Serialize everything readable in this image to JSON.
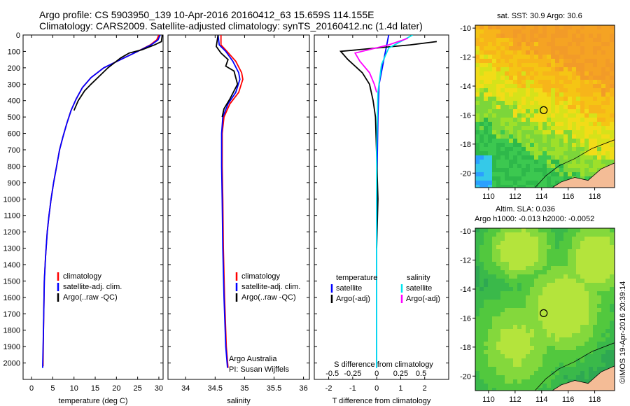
{
  "header": {
    "line1": "Argo profile: CS 5903950_139 10-Apr-2016 20160412_63 15.659S 114.155E",
    "line2": "Climatology: CARS2009. Satellite-adjusted climatology: synTS_20160412.nc (1.4d later)"
  },
  "chart_data": [
    {
      "type": "line",
      "panel": "temperature",
      "xlabel": "temperature (deg C)",
      "xlim": [
        -2,
        31
      ],
      "xticks": [
        0,
        5,
        10,
        15,
        20,
        25,
        30
      ],
      "ylim": [
        2100,
        0
      ],
      "yticks": [
        0,
        100,
        200,
        300,
        400,
        500,
        600,
        700,
        800,
        900,
        1000,
        1100,
        1200,
        1300,
        1400,
        1500,
        1600,
        1700,
        1800,
        1900,
        2000
      ],
      "legend": [
        "climatology",
        "satellite-adj. clim.",
        "Argo(..raw -QC)"
      ],
      "series": [
        {
          "name": "climatology",
          "color": "#ff0000",
          "x": [
            30,
            29.5,
            28,
            25,
            21,
            17,
            14,
            12,
            10.5,
            9.3,
            8.3,
            7.4,
            6.6,
            5.9,
            5.2,
            4.6,
            4.1,
            3.7,
            3.3,
            3.0,
            2.8,
            2.7
          ],
          "y": [
            0,
            30,
            60,
            100,
            150,
            200,
            260,
            320,
            390,
            460,
            540,
            620,
            700,
            800,
            900,
            1000,
            1100,
            1200,
            1350,
            1500,
            1800,
            2020
          ]
        },
        {
          "name": "satellite-adj. clim.",
          "color": "#0000ff",
          "x": [
            30.3,
            29.8,
            28.2,
            25,
            21,
            17,
            14,
            12,
            10.5,
            9.3,
            8.3,
            7.4,
            6.6,
            5.9,
            5.2,
            4.6,
            4.1,
            3.7,
            3.3,
            3.0,
            2.8,
            2.6
          ],
          "y": [
            0,
            30,
            60,
            100,
            150,
            200,
            260,
            320,
            390,
            460,
            540,
            620,
            700,
            800,
            900,
            1000,
            1100,
            1200,
            1350,
            1500,
            1800,
            2030
          ]
        },
        {
          "name": "Argo(..raw -QC)",
          "color": "#000000",
          "x": [
            30.8,
            30.6,
            29,
            26,
            23,
            21,
            19.5,
            18,
            16,
            14,
            12.5,
            11,
            10
          ],
          "y": [
            0,
            40,
            60,
            90,
            110,
            140,
            170,
            200,
            250,
            300,
            340,
            400,
            460
          ]
        }
      ]
    },
    {
      "type": "line",
      "panel": "salinity",
      "xlabel": "salinity",
      "xlim": [
        33.7,
        36.1
      ],
      "xticks": [
        34,
        34.5,
        35,
        35.5,
        36
      ],
      "ylim": [
        2100,
        0
      ],
      "legend": [
        "climatology",
        "satellite-adj. clim.",
        "Argo(..raw -QC)"
      ],
      "series": [
        {
          "name": "climatology",
          "color": "#ff0000",
          "x": [
            34.6,
            34.6,
            34.7,
            34.85,
            34.95,
            34.97,
            34.9,
            34.75,
            34.65,
            34.62,
            34.62,
            34.63,
            34.64,
            34.66,
            34.69,
            34.72
          ],
          "y": [
            0,
            60,
            100,
            160,
            230,
            270,
            350,
            420,
            500,
            600,
            800,
            1000,
            1300,
            1600,
            1900,
            2030
          ]
        },
        {
          "name": "satellite-adj. clim.",
          "color": "#0000ff",
          "x": [
            34.55,
            34.57,
            34.68,
            34.8,
            34.9,
            34.92,
            34.85,
            34.72,
            34.63,
            34.61,
            34.61,
            34.62,
            34.63,
            34.65,
            34.68,
            34.71
          ],
          "y": [
            0,
            60,
            100,
            160,
            230,
            270,
            350,
            420,
            500,
            600,
            800,
            1000,
            1300,
            1600,
            1900,
            2030
          ]
        },
        {
          "name": "Argo(..raw -QC)",
          "color": "#000000",
          "x": [
            34.55,
            34.52,
            34.6,
            34.72,
            34.68,
            34.82,
            34.88,
            34.75,
            34.65,
            34.62
          ],
          "y": [
            0,
            70,
            110,
            150,
            190,
            220,
            300,
            390,
            450,
            500
          ]
        }
      ]
    },
    {
      "type": "line",
      "panel": "difference",
      "xlabel": "T difference from climatology",
      "secondary_xlabel": "S difference from climatology",
      "xlim": [
        -2.6,
        3
      ],
      "xticks": [
        -2,
        -1,
        0,
        1,
        2
      ],
      "secondary_xticks": [
        "-0.5",
        "-0.25",
        "0",
        "0.25",
        "0.5"
      ],
      "ylim": [
        2100,
        0
      ],
      "legend": [
        {
          "group": "temperature",
          "items": [
            "satellite",
            "Argo(-adj)"
          ]
        },
        {
          "group": "salinity",
          "items": [
            "satellite",
            "Argo(-adj)"
          ]
        }
      ],
      "series": [
        {
          "name": "temperature satellite",
          "color": "#0000ff",
          "x": [
            0.5,
            0.3,
            0.1,
            0.05,
            0,
            0,
            0
          ],
          "y": [
            0,
            150,
            300,
            500,
            1000,
            1500,
            2030
          ]
        },
        {
          "name": "temperature Argo(-adj)",
          "color": "#000000",
          "x": [
            2.5,
            1.4,
            -1.5,
            -1.2,
            -0.6,
            -0.3,
            -0.15,
            -0.05,
            0.05,
            0
          ],
          "y": [
            40,
            60,
            100,
            150,
            230,
            300,
            400,
            500,
            1000,
            1300
          ]
        },
        {
          "name": "salinity satellite",
          "color": "#00e5ee",
          "x": [
            1.5,
            0.5,
            0.2,
            0.05,
            0,
            0
          ],
          "y": [
            0,
            80,
            180,
            350,
            700,
            2030
          ]
        },
        {
          "name": "salinity Argo(-adj)",
          "color": "#ff00ff",
          "x": [
            1.3,
            0.5,
            -0.9,
            -0.7,
            -0.3,
            -0.1,
            0
          ],
          "y": [
            20,
            60,
            110,
            160,
            230,
            300,
            350
          ]
        }
      ]
    },
    {
      "type": "heatmap",
      "panel": "SST map",
      "title": "sat. SST: 30.9 Argo: 30.6",
      "xticks": [
        110,
        112,
        114,
        116,
        118
      ],
      "yticks": [
        -10,
        -12,
        -14,
        -16,
        -18,
        -20
      ],
      "xlim": [
        109,
        119.5
      ],
      "ylim": [
        -21,
        -9.8
      ],
      "float_position": [
        114.155,
        -15.659
      ],
      "sat_sst": 30.9,
      "argo_sst": 30.6
    },
    {
      "type": "heatmap",
      "panel": "SLA map",
      "title": "Altim. SLA: 0.036",
      "subtitle": "Argo h1000: -0.013 h2000: -0.0052",
      "xticks": [
        110,
        112,
        114,
        116,
        118
      ],
      "yticks": [
        -10,
        -12,
        -14,
        -16,
        -18,
        -20
      ],
      "xlim": [
        109,
        119.5
      ],
      "ylim": [
        -21,
        -9.8
      ],
      "float_position": [
        114.155,
        -15.659
      ],
      "sla": 0.036,
      "h1000": -0.013,
      "h2000": -0.0052
    }
  ],
  "footer": {
    "argo_australia": "Argo Australia",
    "pi": "PI: Susan Wijffels",
    "stamp": "©IMOS 19-Apr-2016 20:39:14"
  }
}
